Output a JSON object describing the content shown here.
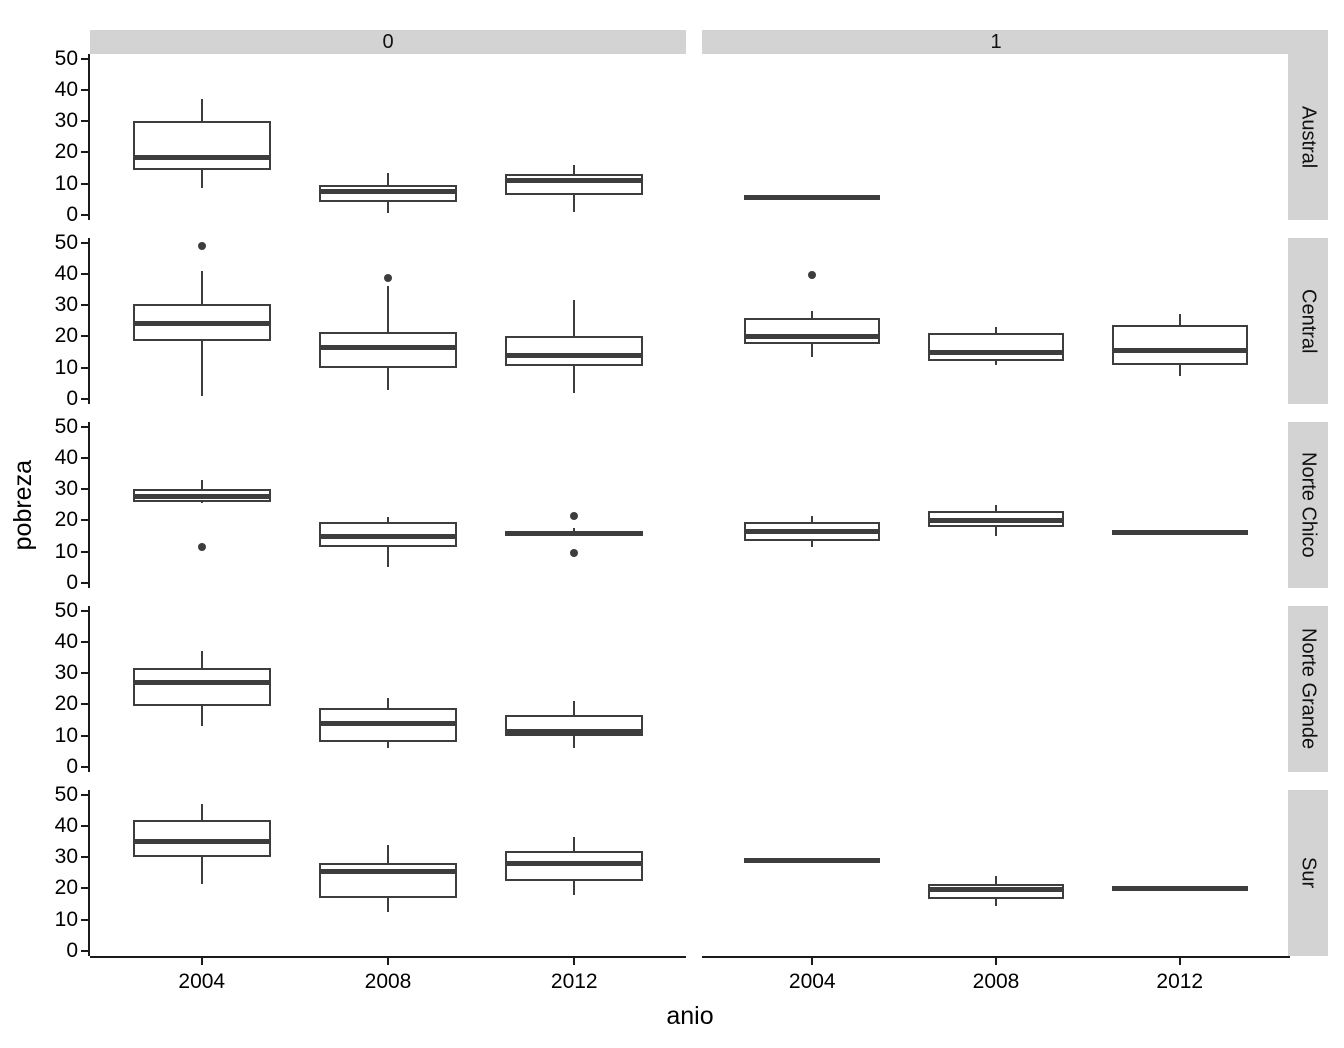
{
  "chart_data": {
    "type": "boxplot",
    "title": "",
    "xlabel": "anio",
    "ylabel": "pobreza",
    "facet_columns": [
      "0",
      "1"
    ],
    "facet_rows": [
      "Austral",
      "Central",
      "Norte Chico",
      "Norte Grande",
      "Sur"
    ],
    "x_categories": [
      "2004",
      "2008",
      "2012"
    ],
    "ylim": [
      0,
      50
    ],
    "yticks": [
      0,
      10,
      20,
      30,
      40,
      50
    ],
    "grid": "off",
    "legend": "none",
    "style": {
      "box_line_color": "#3d3d3d",
      "axis_color": "#1a1a1a",
      "strip_fill": "#d3d3d3",
      "box_fill": "#ffffff",
      "background": "#ffffff"
    },
    "boxes": [
      {
        "col": "0",
        "row": "Austral",
        "x": "2004",
        "min": 8.5,
        "q1": 14.5,
        "median": 18.5,
        "q3": 30,
        "max": 37,
        "outliers": []
      },
      {
        "col": "0",
        "row": "Austral",
        "x": "2008",
        "min": 0.5,
        "q1": 4,
        "median": 7.5,
        "q3": 9.5,
        "max": 13.5,
        "outliers": []
      },
      {
        "col": "0",
        "row": "Austral",
        "x": "2012",
        "min": 1,
        "q1": 6.5,
        "median": 11,
        "q3": 13,
        "max": 16,
        "outliers": []
      },
      {
        "col": "0",
        "row": "Central",
        "x": "2004",
        "min": 1,
        "q1": 18.5,
        "median": 24,
        "q3": 30.5,
        "max": 41,
        "outliers": [
          49
        ]
      },
      {
        "col": "0",
        "row": "Central",
        "x": "2008",
        "min": 3,
        "q1": 10,
        "median": 16.5,
        "q3": 21.5,
        "max": 36,
        "outliers": [
          38.5
        ]
      },
      {
        "col": "0",
        "row": "Central",
        "x": "2012",
        "min": 2,
        "q1": 10.5,
        "median": 14,
        "q3": 20,
        "max": 31.5,
        "outliers": []
      },
      {
        "col": "0",
        "row": "Norte Chico",
        "x": "2004",
        "min": 25.5,
        "q1": 26,
        "median": 27.5,
        "q3": 30,
        "max": 33,
        "outliers": [
          11.5
        ]
      },
      {
        "col": "0",
        "row": "Norte Chico",
        "x": "2008",
        "min": 5,
        "q1": 11.5,
        "median": 15,
        "q3": 19.5,
        "max": 21,
        "outliers": []
      },
      {
        "col": "0",
        "row": "Norte Chico",
        "x": "2012",
        "min": 15,
        "q1": 15.2,
        "median": 15.8,
        "q3": 16.3,
        "max": 17.5,
        "outliers": [
          21.5,
          9.5
        ]
      },
      {
        "col": "0",
        "row": "Norte Grande",
        "x": "2004",
        "min": 13,
        "q1": 19.5,
        "median": 27,
        "q3": 31.5,
        "max": 37,
        "outliers": []
      },
      {
        "col": "0",
        "row": "Norte Grande",
        "x": "2008",
        "min": 6,
        "q1": 8,
        "median": 14,
        "q3": 19,
        "max": 22,
        "outliers": []
      },
      {
        "col": "0",
        "row": "Norte Grande",
        "x": "2012",
        "min": 6,
        "q1": 10,
        "median": 11.5,
        "q3": 16.5,
        "max": 21,
        "outliers": []
      },
      {
        "col": "0",
        "row": "Sur",
        "x": "2004",
        "min": 21.5,
        "q1": 30,
        "median": 35,
        "q3": 42,
        "max": 47,
        "outliers": []
      },
      {
        "col": "0",
        "row": "Sur",
        "x": "2008",
        "min": 12.5,
        "q1": 17,
        "median": 25.5,
        "q3": 28,
        "max": 34,
        "outliers": []
      },
      {
        "col": "0",
        "row": "Sur",
        "x": "2012",
        "min": 18,
        "q1": 22.5,
        "median": 28,
        "q3": 32,
        "max": 36.5,
        "outliers": []
      },
      {
        "col": "1",
        "row": "Austral",
        "x": "2004",
        "min": 5.5,
        "q1": 5.5,
        "median": 5.5,
        "q3": 5.5,
        "max": 5.5,
        "outliers": []
      },
      {
        "col": "1",
        "row": "Central",
        "x": "2004",
        "min": 13.5,
        "q1": 17.5,
        "median": 20,
        "q3": 26,
        "max": 28,
        "outliers": [
          39.5
        ]
      },
      {
        "col": "1",
        "row": "Central",
        "x": "2008",
        "min": 11,
        "q1": 12,
        "median": 15,
        "q3": 21,
        "max": 23,
        "outliers": []
      },
      {
        "col": "1",
        "row": "Central",
        "x": "2012",
        "min": 7.5,
        "q1": 11,
        "median": 15.5,
        "q3": 23.5,
        "max": 27,
        "outliers": []
      },
      {
        "col": "1",
        "row": "Norte Chico",
        "x": "2004",
        "min": 11.5,
        "q1": 13.5,
        "median": 16.5,
        "q3": 19.5,
        "max": 21.5,
        "outliers": []
      },
      {
        "col": "1",
        "row": "Norte Chico",
        "x": "2008",
        "min": 15,
        "q1": 18,
        "median": 20,
        "q3": 23,
        "max": 25,
        "outliers": []
      },
      {
        "col": "1",
        "row": "Norte Chico",
        "x": "2012",
        "min": 16,
        "q1": 16,
        "median": 16,
        "q3": 16,
        "max": 16,
        "outliers": []
      },
      {
        "col": "1",
        "row": "Sur",
        "x": "2004",
        "min": 29,
        "q1": 29,
        "median": 29,
        "q3": 29,
        "max": 29,
        "outliers": []
      },
      {
        "col": "1",
        "row": "Sur",
        "x": "2008",
        "min": 14.5,
        "q1": 16.5,
        "median": 19.5,
        "q3": 21.5,
        "max": 24,
        "outliers": []
      },
      {
        "col": "1",
        "row": "Sur",
        "x": "2012",
        "min": 20,
        "q1": 20,
        "median": 20,
        "q3": 20,
        "max": 20,
        "outliers": []
      }
    ]
  }
}
